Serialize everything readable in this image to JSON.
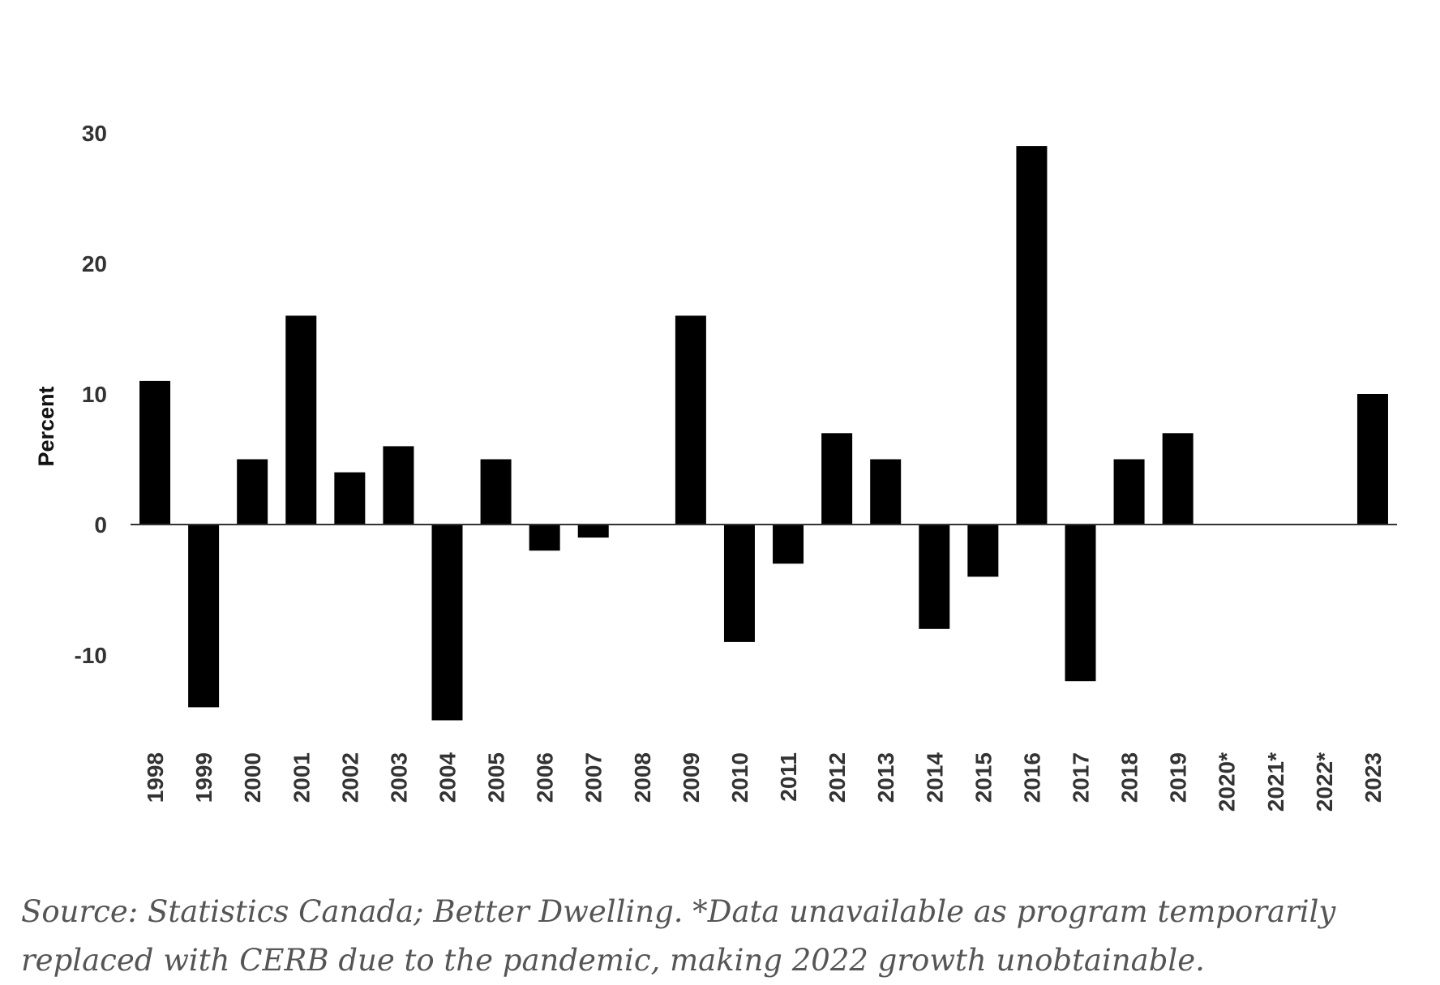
{
  "chart_data": {
    "type": "bar",
    "title": "",
    "xlabel": "",
    "ylabel": "Percent",
    "ylim": [
      -15,
      30
    ],
    "yticks": [
      30,
      20,
      10,
      0,
      -10
    ],
    "ytick_labels": [
      "30",
      "20",
      "10",
      "0",
      "-10"
    ],
    "grid": false,
    "categories": [
      "1998",
      "1999",
      "2000",
      "2001",
      "2002",
      "2003",
      "2004",
      "2005",
      "2006",
      "2007",
      "2008",
      "2009",
      "2010",
      "2011",
      "2012",
      "2013",
      "2014",
      "2015",
      "2016",
      "2017",
      "2018",
      "2019",
      "2020*",
      "2021*",
      "2022*",
      "2023"
    ],
    "values": [
      11,
      -14,
      5,
      16,
      4,
      6,
      -15,
      5,
      -2,
      -1,
      0,
      16,
      -9,
      -3,
      7,
      5,
      -8,
      -4,
      29,
      -12,
      5,
      7,
      null,
      null,
      null,
      10
    ],
    "bar_color": "#000000"
  },
  "caption": "Source: Statistics Canada; Better Dwelling. *Data unavailable as program temporarily replaced with CERB due to the pandemic, making 2022 growth unobtainable."
}
